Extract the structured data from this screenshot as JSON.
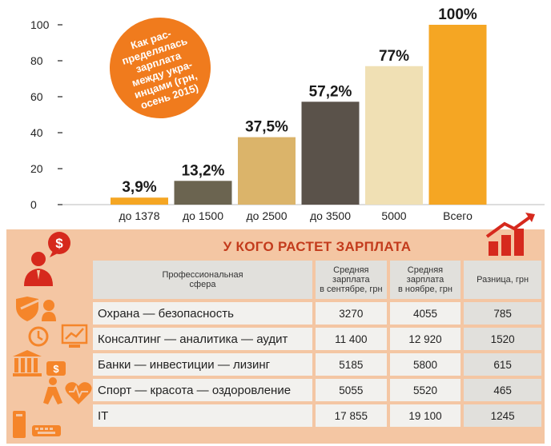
{
  "chart_data": {
    "type": "bar",
    "categories": [
      "до 1378",
      "до 1500",
      "до 2500",
      "до 3500",
      "5000",
      "Всего"
    ],
    "values": [
      3.9,
      13.2,
      37.5,
      57.2,
      77,
      100
    ],
    "data_labels": [
      "3,9%",
      "13,2%",
      "37,5%",
      "57,2%",
      "77%",
      "100%"
    ],
    "bar_colors": [
      "#f5a623",
      "#6b6450",
      "#dbb46a",
      "#5a524a",
      "#f0e0b4",
      "#f5a623"
    ],
    "ylim": [
      0,
      100
    ],
    "yticks": [
      0,
      20,
      40,
      60,
      80,
      100
    ],
    "grid": false
  },
  "note": {
    "text": "Как рас-\nпределялась\nзарплата\nмежду укра-\nинцами (грн,\nосень 2015)"
  },
  "table": {
    "title": "У КОГО РАСТЕТ ЗАРПЛАТА",
    "headers": {
      "sphere": "Профессиональная\nсфера",
      "sep": "Средняя\nзарплата\nв сентябре, грн",
      "nov": "Средняя\nзарплата\nв ноябре, грн",
      "diff": "Разница, грн"
    },
    "rows": [
      {
        "sphere": "Охрана — безопасность",
        "sep": "3270",
        "nov": "4055",
        "diff": "785"
      },
      {
        "sphere": "Консалтинг — аналитика — аудит",
        "sep": "11 400",
        "nov": "12 920",
        "diff": "1520"
      },
      {
        "sphere": "Банки — инвестиции — лизинг",
        "sep": "5185",
        "nov": "5800",
        "diff": "615"
      },
      {
        "sphere": "Спорт — красота — оздоровление",
        "sep": "5055",
        "nov": "5520",
        "diff": "465"
      },
      {
        "sphere": "IT",
        "sep": "17 855",
        "nov": "19 100",
        "diff": "1245"
      }
    ]
  },
  "colors": {
    "accent": "#f07b1d",
    "title_red": "#c33b1c",
    "icon_orange": "#f5852a",
    "icon_red": "#d6291d"
  }
}
